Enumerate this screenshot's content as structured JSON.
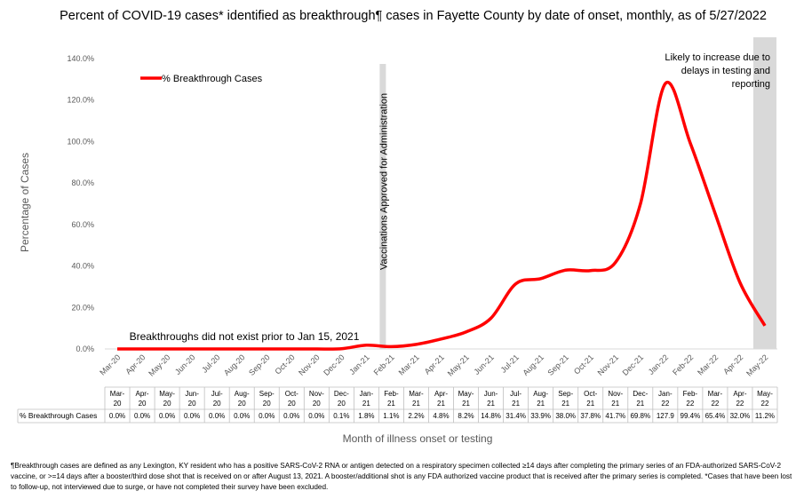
{
  "title": "Percent of COVID-19 cases* identified as breakthrough¶ cases in Fayette County by date of onset, monthly, as of 5/27/2022",
  "colors": {
    "series": "#ff0000",
    "shade": "#d9d9d9",
    "axis_text": "#595959"
  },
  "annotations": {
    "vaccine_line": "Vaccinations Approved for Administration",
    "no_breakthrough": "Breakthroughs did not exist prior to Jan 15, 2021",
    "likely_increase": [
      "Likely to increase due to",
      "delays in testing and",
      "reporting"
    ]
  },
  "table_row_label": "% Breakthrough Cases",
  "footnote": "¶Breakthrough cases are defined as any Lexington, KY resident who has a positive SARS-CoV-2 RNA or antigen detected on a respiratory specimen collected ≥14 days after completing the primary series of an FDA-authorized SARS-CoV-2 vaccine, or >=14 days after a booster/third dose shot that is received on or after August 13, 2021.  A booster/additional shot is any FDA authorized vaccine product that is received after the primary series is completed. *Cases that have been lost to follow-up, not interviewed due to surge, or have not completed their survey have been excluded.",
  "chart_data": {
    "type": "line",
    "title": "Percent of COVID-19 cases* identified as breakthrough¶ cases in Fayette County by date of onset, monthly, as of 5/27/2022",
    "xlabel": "Month of illness onset or testing",
    "ylabel": "Percentage of Cases",
    "ylim": [
      0,
      140
    ],
    "yticks": [
      "0.0%",
      "20.0%",
      "40.0%",
      "60.0%",
      "80.0%",
      "100.0%",
      "120.0%",
      "140.0%"
    ],
    "legend_position": "top-left",
    "categories": [
      "Mar-20",
      "Apr-20",
      "May-20",
      "Jun-20",
      "Jul-20",
      "Aug-20",
      "Sep-20",
      "Oct-20",
      "Nov-20",
      "Dec-20",
      "Jan-21",
      "Feb-21",
      "Mar-21",
      "Apr-21",
      "May-21",
      "Jun-21",
      "Jul-21",
      "Aug-21",
      "Sep-21",
      "Oct-21",
      "Nov-21",
      "Dec-21",
      "Jan-22",
      "Feb-22",
      "Mar-22",
      "Apr-22",
      "May-22"
    ],
    "table_month": [
      "Mar-",
      "Apr-",
      "May-",
      "Jun-",
      "Jul-",
      "Aug-",
      "Sep-",
      "Oct-",
      "Nov-",
      "Dec-",
      "Jan-",
      "Feb-",
      "Mar-",
      "Apr-",
      "May-",
      "Jun-",
      "Jul-",
      "Aug-",
      "Sep-",
      "Oct-",
      "Nov-",
      "Dec-",
      "Jan-",
      "Feb-",
      "Mar-",
      "Apr-",
      "May-"
    ],
    "table_year": [
      "20",
      "20",
      "20",
      "20",
      "20",
      "20",
      "20",
      "20",
      "20",
      "20",
      "21",
      "21",
      "21",
      "21",
      "21",
      "21",
      "21",
      "21",
      "21",
      "21",
      "21",
      "21",
      "22",
      "22",
      "22",
      "22",
      "22"
    ],
    "value_labels": [
      "0.0%",
      "0.0%",
      "0.0%",
      "0.0%",
      "0.0%",
      "0.0%",
      "0.0%",
      "0.0%",
      "0.0%",
      "0.1%",
      "1.8%",
      "1.1%",
      "2.2%",
      "4.8%",
      "8.2%",
      "14.8%",
      "31.4%",
      "33.9%",
      "38.0%",
      "37.8%",
      "41.7%",
      "69.8%",
      "127.9",
      "99.4%",
      "65.4%",
      "32.0%",
      "11.2%"
    ],
    "series": [
      {
        "name": "% Breakthrough Cases",
        "values": [
          0.0,
          0.0,
          0.0,
          0.0,
          0.0,
          0.0,
          0.0,
          0.0,
          0.0,
          0.1,
          1.8,
          1.1,
          2.2,
          4.8,
          8.2,
          14.8,
          31.4,
          33.9,
          38.0,
          37.8,
          41.7,
          69.8,
          127.9,
          99.4,
          65.4,
          32.0,
          11.2
        ]
      }
    ],
    "vertical_marker_category": "Feb-21",
    "shaded_category": "May-22"
  }
}
